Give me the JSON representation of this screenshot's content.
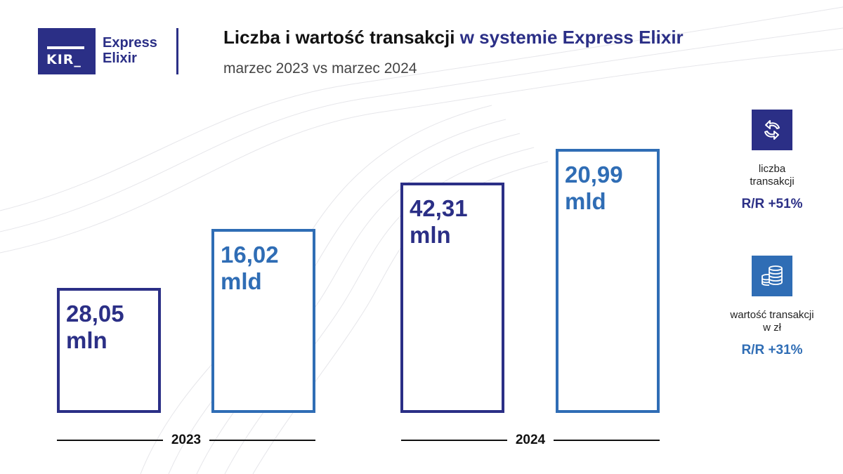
{
  "logo": {
    "mark": "KIR_",
    "brand_line1": "Express",
    "brand_line2": "Elixir"
  },
  "header": {
    "title_part1": "Liczba i wartość transakcji",
    "title_part2": "w systemie Express Elixir",
    "subtitle": "marzec 2023 vs marzec 2024"
  },
  "colors": {
    "navy": "#2b2f86",
    "blue": "#2f6db5"
  },
  "chart_data": {
    "type": "bar",
    "title": "Liczba i wartość transakcji w systemie Express Elixir",
    "categories": [
      "2023",
      "2024"
    ],
    "series": [
      {
        "name": "liczba transakcji",
        "unit": "mln",
        "values": [
          28.05,
          42.31
        ],
        "labels": [
          "28,05",
          "42,31"
        ],
        "unit_label": "mln",
        "color": "#2b2f86"
      },
      {
        "name": "wartość transakcji w zł",
        "unit": "mld",
        "values": [
          16.02,
          20.99
        ],
        "labels": [
          "16,02",
          "20,99"
        ],
        "unit_label": "mld",
        "color": "#2f6db5"
      }
    ]
  },
  "side": {
    "count": {
      "icon": "exchange-arrows-icon",
      "caption_line1": "liczba",
      "caption_line2": "transakcji",
      "yoy": "R/R +51%"
    },
    "value": {
      "icon": "coins-stack-icon",
      "caption_line1": "wartość transakcji",
      "caption_line2": "w zł",
      "yoy": "R/R +31%"
    }
  }
}
